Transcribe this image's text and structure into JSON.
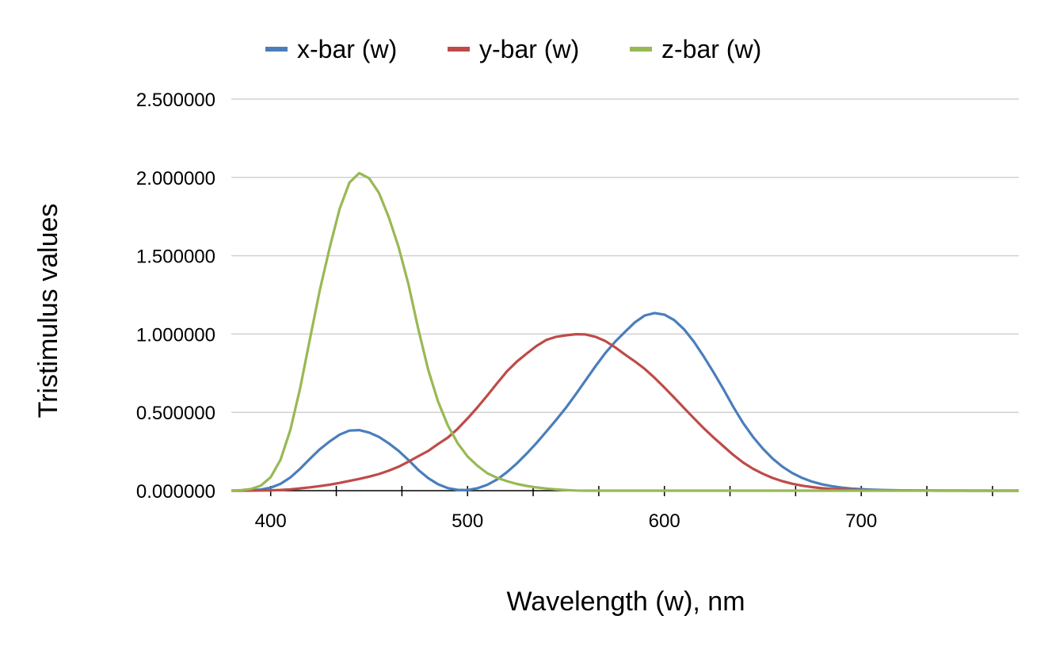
{
  "chart_data": {
    "type": "line",
    "xlabel": "Wavelength (w), nm",
    "ylabel": "Tristimulus values",
    "xlim": [
      380,
      780
    ],
    "ylim": [
      0,
      2.5
    ],
    "x_ticks": [
      "400",
      "500",
      "600",
      "700"
    ],
    "y_ticks": [
      "0.000000",
      "0.500000",
      "1.000000",
      "1.500000",
      "2.000000",
      "2.500000"
    ],
    "grid": true,
    "legend_position": "top",
    "x": [
      380,
      385,
      390,
      395,
      400,
      405,
      410,
      415,
      420,
      425,
      430,
      435,
      440,
      445,
      450,
      455,
      460,
      465,
      470,
      475,
      480,
      485,
      490,
      495,
      500,
      505,
      510,
      515,
      520,
      525,
      530,
      535,
      540,
      545,
      550,
      555,
      560,
      565,
      570,
      575,
      580,
      585,
      590,
      595,
      600,
      605,
      610,
      615,
      620,
      625,
      630,
      635,
      640,
      645,
      650,
      655,
      660,
      665,
      670,
      675,
      680,
      685,
      690,
      695,
      700,
      705,
      710,
      715,
      720,
      725,
      730,
      735,
      740,
      745,
      750,
      755,
      760,
      765,
      770,
      775,
      780
    ],
    "series": [
      {
        "name": "x-bar (w)",
        "color": "#4a7ebb",
        "values": [
          0.0002,
          0.0007,
          0.0024,
          0.0072,
          0.0191,
          0.0434,
          0.0847,
          0.1406,
          0.2045,
          0.2647,
          0.3147,
          0.3577,
          0.3837,
          0.3867,
          0.3707,
          0.343,
          0.3023,
          0.2541,
          0.1956,
          0.1323,
          0.0805,
          0.0411,
          0.0162,
          0.0051,
          0.0038,
          0.0154,
          0.0375,
          0.0714,
          0.1177,
          0.173,
          0.2365,
          0.3042,
          0.3768,
          0.4516,
          0.5298,
          0.6161,
          0.7052,
          0.7938,
          0.8787,
          0.9512,
          1.0142,
          1.0743,
          1.1185,
          1.1343,
          1.124,
          1.0891,
          1.0305,
          0.9507,
          0.8563,
          0.7549,
          0.6475,
          0.5351,
          0.4316,
          0.3437,
          0.2683,
          0.2043,
          0.1526,
          0.1122,
          0.0813,
          0.0579,
          0.0409,
          0.0286,
          0.0199,
          0.0138,
          0.0096,
          0.0066,
          0.0046,
          0.0031,
          0.0022,
          0.0015,
          0.001,
          0.0007,
          0.0005,
          0.0004,
          0.0003,
          0.0002,
          0.0001,
          0.0001,
          0.0001,
          0.0,
          0.0
        ]
      },
      {
        "name": "y-bar (w)",
        "color": "#be4b48",
        "values": [
          0.0,
          0.0001,
          0.0003,
          0.0008,
          0.002,
          0.0045,
          0.0088,
          0.0145,
          0.0214,
          0.0295,
          0.0387,
          0.0496,
          0.0621,
          0.0747,
          0.0895,
          0.1063,
          0.1282,
          0.1528,
          0.1852,
          0.2199,
          0.2536,
          0.2977,
          0.3391,
          0.3954,
          0.4608,
          0.5314,
          0.6067,
          0.6857,
          0.7618,
          0.8233,
          0.8752,
          0.9238,
          0.962,
          0.9822,
          0.9918,
          0.9991,
          0.9973,
          0.9824,
          0.9556,
          0.9152,
          0.8689,
          0.8256,
          0.7774,
          0.7204,
          0.6583,
          0.5939,
          0.528,
          0.4618,
          0.3981,
          0.3396,
          0.2835,
          0.2283,
          0.1798,
          0.1402,
          0.1076,
          0.0812,
          0.0603,
          0.0441,
          0.0318,
          0.0226,
          0.0159,
          0.0111,
          0.0077,
          0.0054,
          0.0037,
          0.0026,
          0.0018,
          0.0012,
          0.0008,
          0.0006,
          0.0004,
          0.0003,
          0.0002,
          0.0001,
          0.0001,
          0.0001,
          0.0001,
          0.0,
          0.0,
          0.0,
          0.0
        ]
      },
      {
        "name": "z-bar (w)",
        "color": "#98b954",
        "values": [
          0.0007,
          0.0029,
          0.0105,
          0.0323,
          0.086,
          0.1971,
          0.3894,
          0.6568,
          0.9725,
          1.2825,
          1.5535,
          1.7985,
          1.9673,
          2.0273,
          1.9948,
          1.9007,
          1.7454,
          1.5549,
          1.3176,
          1.0302,
          0.7721,
          0.5701,
          0.4153,
          0.3024,
          0.2185,
          0.1592,
          0.112,
          0.0822,
          0.0607,
          0.0431,
          0.0305,
          0.0206,
          0.0137,
          0.0079,
          0.004,
          0.0011,
          0,
          0,
          0,
          0,
          0,
          0,
          0,
          0,
          0,
          0,
          0,
          0,
          0,
          0,
          0,
          0,
          0,
          0,
          0,
          0,
          0,
          0,
          0,
          0,
          0,
          0,
          0,
          0,
          0,
          0,
          0,
          0,
          0,
          0,
          0,
          0,
          0,
          0,
          0,
          0,
          0,
          0,
          0,
          0,
          0
        ]
      }
    ]
  }
}
